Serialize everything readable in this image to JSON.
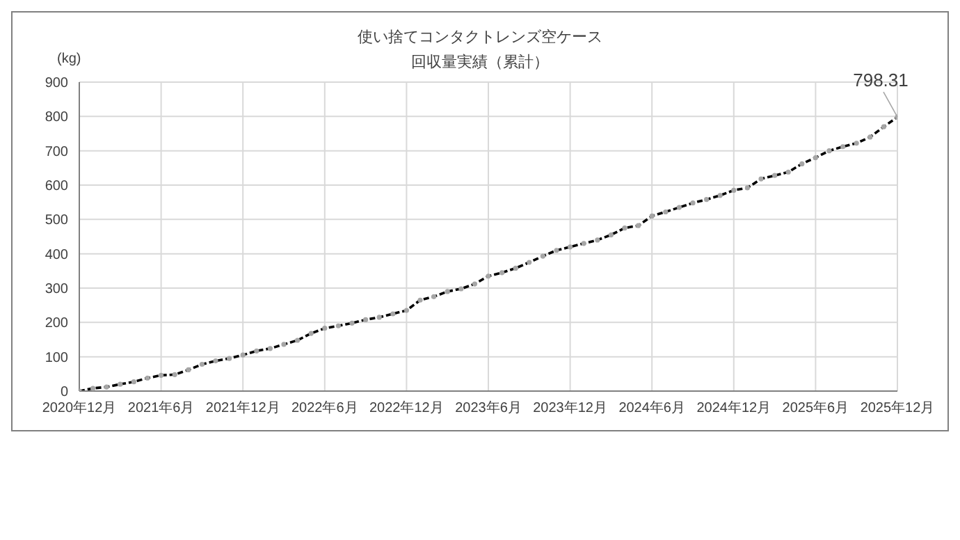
{
  "chart_data": {
    "type": "line",
    "title": "使い捨てコンタクトレンズ空ケース",
    "subtitle": "回収量実績（累計）",
    "ylabel": "(kg)",
    "categories": [
      "2020年12月",
      null,
      null,
      null,
      null,
      null,
      "2021年6月",
      null,
      null,
      null,
      null,
      null,
      "2021年12月",
      null,
      null,
      null,
      null,
      null,
      "2022年6月",
      null,
      null,
      null,
      null,
      null,
      "2022年12月",
      null,
      null,
      null,
      null,
      null,
      "2023年6月",
      null,
      null,
      null,
      null,
      null,
      "2023年12月",
      null,
      null,
      null,
      null,
      null,
      "2024年6月",
      null,
      null,
      null,
      null,
      null,
      "2024年12月",
      null,
      null,
      null,
      null,
      null,
      "2025年6月",
      null,
      null,
      null,
      null,
      null,
      "2025年12月"
    ],
    "series": [
      {
        "color": "#000000",
        "values": [
          0,
          8,
          12,
          20,
          27,
          38,
          46,
          48,
          62,
          78,
          88,
          95,
          105,
          117,
          124,
          136,
          148,
          168,
          183,
          190,
          198,
          208,
          215,
          225,
          235,
          265,
          275,
          290,
          298,
          312,
          335,
          345,
          358,
          375,
          393,
          410,
          420,
          430,
          440,
          455,
          475,
          482,
          510,
          522,
          535,
          548,
          558,
          570,
          585,
          592,
          618,
          628,
          638,
          662,
          680,
          700,
          712,
          722,
          740,
          770,
          798.31
        ]
      }
    ],
    "annotations": [
      {
        "text": "798.31",
        "x": "2025年12月",
        "y": 798.31
      }
    ],
    "ylim": [
      0,
      900
    ],
    "yticks": [
      0,
      100,
      200,
      300,
      400,
      500,
      600,
      700,
      800,
      900
    ],
    "grid": true,
    "marker": "circle",
    "line_style": "dashed"
  }
}
